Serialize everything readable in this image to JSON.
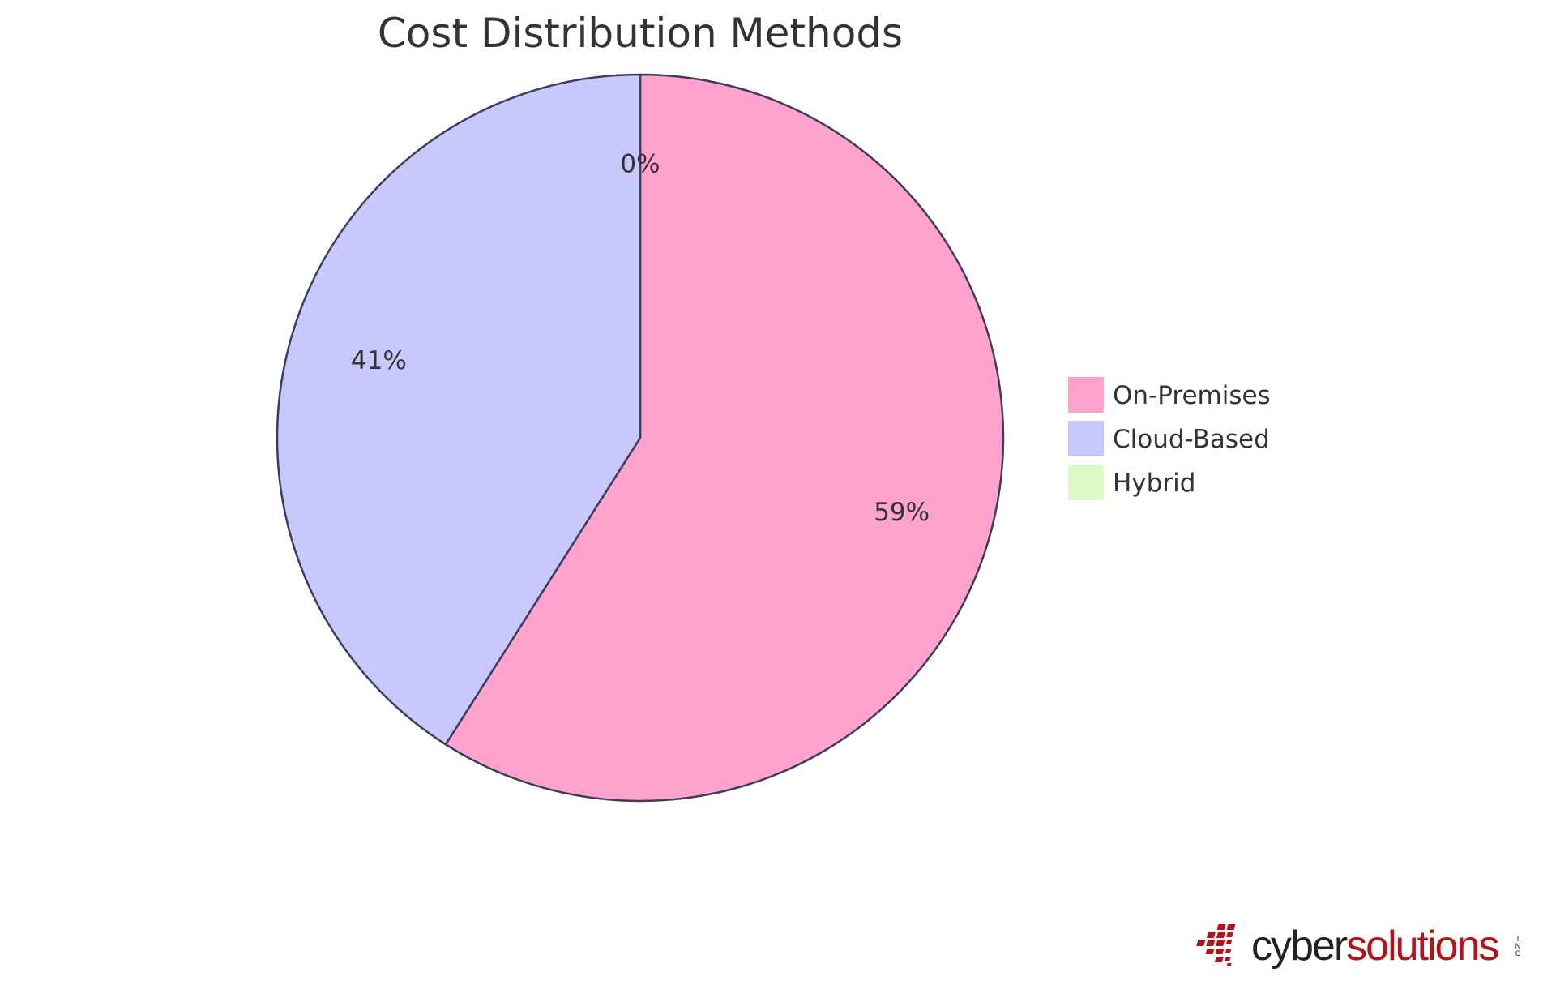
{
  "chart_data": {
    "type": "pie",
    "title": "Cost Distribution Methods",
    "slices": [
      {
        "name": "On-Premises",
        "value": 59,
        "label": "59%",
        "color": "#ffa2cd"
      },
      {
        "name": "Cloud-Based",
        "value": 41,
        "label": "41%",
        "color": "#c8c8ff"
      },
      {
        "name": "Hybrid",
        "value": 0,
        "label": "0%",
        "color": "#dcfac8"
      }
    ],
    "legend_position": "right",
    "stroke_color": "#3b3d5c"
  },
  "logo": {
    "text_dark": "cyber",
    "text_accent": "solutions",
    "suffix": "INC",
    "accent_color": "#b5121b"
  }
}
